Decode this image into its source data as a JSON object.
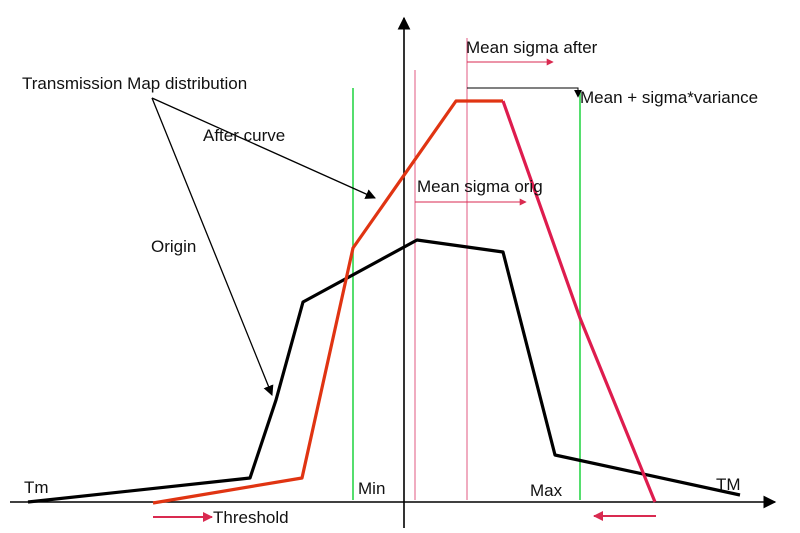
{
  "labels": {
    "tm_left": "Tm",
    "tm_right": "TM",
    "min": "Min",
    "max": "Max",
    "threshold": "Threshold",
    "transmission": "Transmission Map distribution",
    "after_curve": "After curve",
    "origin": "Origin",
    "mean_sigma_after": "Mean sigma after",
    "mean_sigma_orig": "Mean sigma orig",
    "mean_plus": "Mean + sigma*variance"
  },
  "colors": {
    "origin_curve": "#000000",
    "after_curve_red": "#e03412",
    "after_curve_pink": "#de1c4e",
    "green_line": "#2bd54a",
    "pink_line": "#e05a82",
    "arrow_pink": "#d92a50",
    "axis": "#000000"
  }
}
